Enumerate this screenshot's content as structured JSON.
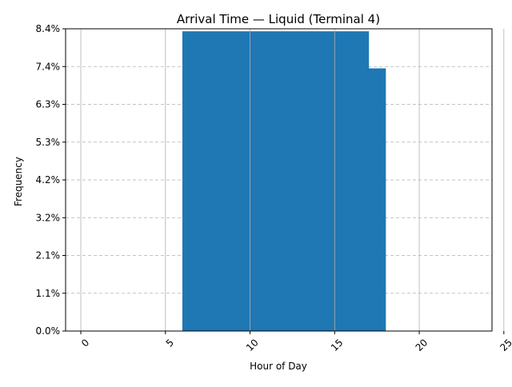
{
  "chart_data": {
    "type": "bar",
    "title": "Arrival Time — Liquid (Terminal 4)",
    "xlabel": "Hour of Day",
    "ylabel": "Frequency",
    "xlim": [
      -0.9,
      24.3
    ],
    "ylim": [
      0,
      8.4
    ],
    "x_ticks": [
      0,
      5,
      10,
      15,
      20,
      25
    ],
    "x_tick_labels": [
      "0",
      "5",
      "10",
      "15",
      "20",
      "25"
    ],
    "y_ticks": [
      0.0,
      1.05,
      2.1,
      3.15,
      4.2,
      5.25,
      6.3,
      7.35,
      8.4
    ],
    "y_tick_labels": [
      "0.0%",
      "1.1%",
      "2.1%",
      "3.2%",
      "4.2%",
      "5.3%",
      "6.3%",
      "7.4%",
      "8.4%"
    ],
    "x_tick_rotation": 45,
    "grid": {
      "x": "solid",
      "y": "dashed"
    },
    "bar_color": "#1f77b4",
    "bins": [
      {
        "start": 6,
        "end": 7,
        "value": 8.33
      },
      {
        "start": 7,
        "end": 8,
        "value": 8.33
      },
      {
        "start": 8,
        "end": 9,
        "value": 8.33
      },
      {
        "start": 9,
        "end": 10,
        "value": 8.33
      },
      {
        "start": 10,
        "end": 11,
        "value": 8.33
      },
      {
        "start": 11,
        "end": 12,
        "value": 8.33
      },
      {
        "start": 12,
        "end": 13,
        "value": 8.33
      },
      {
        "start": 13,
        "end": 14,
        "value": 8.33
      },
      {
        "start": 14,
        "end": 15,
        "value": 8.33
      },
      {
        "start": 15,
        "end": 16,
        "value": 8.33
      },
      {
        "start": 16,
        "end": 17,
        "value": 8.33
      },
      {
        "start": 17,
        "end": 18,
        "value": 7.3
      }
    ]
  }
}
